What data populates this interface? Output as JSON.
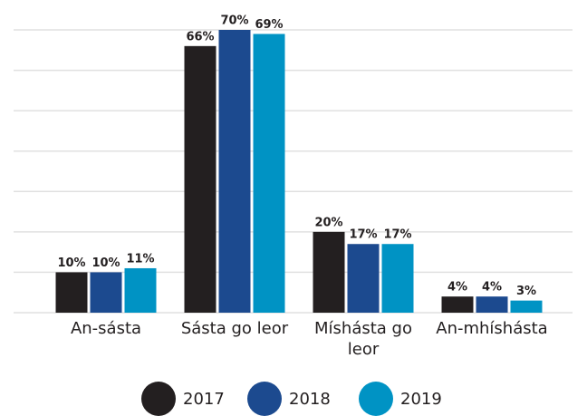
{
  "chart_data": {
    "type": "bar",
    "categories": [
      "An-sásta",
      "Sásta go leor",
      "Míshásta go leor",
      "An-mhíshásta"
    ],
    "series": [
      {
        "name": "2017",
        "color": "#231f20",
        "values": [
          10,
          66,
          20,
          4
        ],
        "value_labels": [
          "10%",
          "66%",
          "20%",
          "4%"
        ]
      },
      {
        "name": "2018",
        "color": "#1c4a8f",
        "values": [
          10,
          70,
          17,
          4
        ],
        "value_labels": [
          "10%",
          "70%",
          "17%",
          "4%"
        ]
      },
      {
        "name": "2019",
        "color": "#0093c4",
        "values": [
          11,
          69,
          17,
          3
        ],
        "value_labels": [
          "11%",
          "69%",
          "17%",
          "3%"
        ]
      }
    ],
    "ylim": [
      0,
      70
    ],
    "yticks": [
      0,
      10,
      20,
      30,
      40,
      50,
      60,
      70
    ],
    "grid": true,
    "legend": "bottom"
  }
}
